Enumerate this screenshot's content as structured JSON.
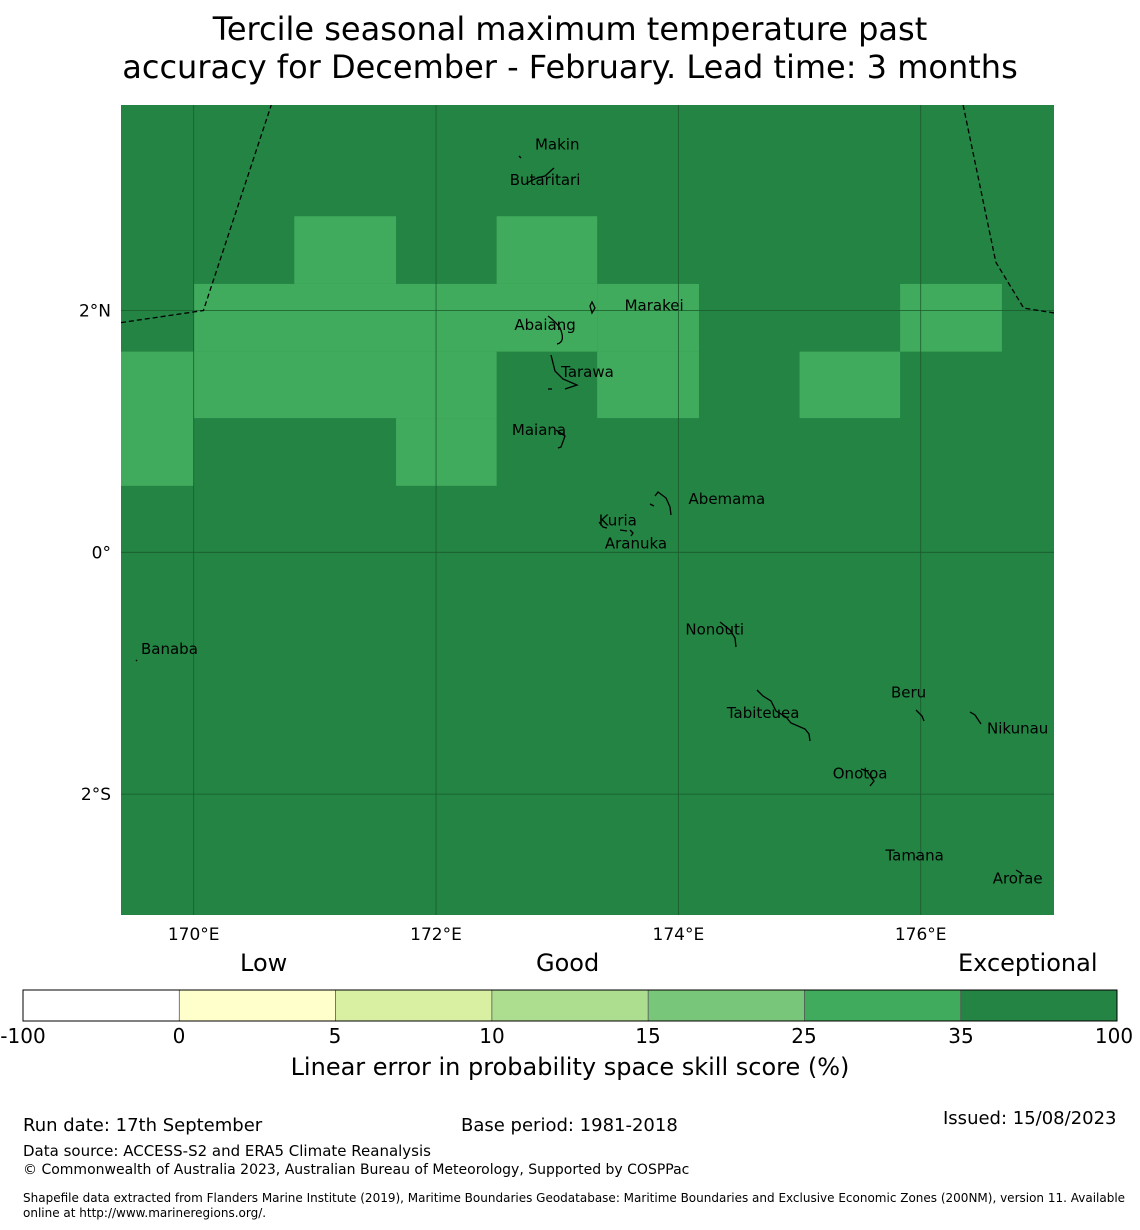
{
  "title": {
    "line1": "Tercile seasonal maximum temperature past",
    "line2": "accuracy for December - February. Lead time: 3 months"
  },
  "map": {
    "lon_range": [
      169.4,
      177.1
    ],
    "lat_range": [
      -3.0,
      3.7
    ],
    "lat_ticks": [
      {
        "value": 2,
        "label": "2°N"
      },
      {
        "value": 0,
        "label": "0°"
      },
      {
        "value": -2,
        "label": "2°S"
      }
    ],
    "lon_ticks": [
      {
        "value": 170,
        "label": "170°E"
      },
      {
        "value": 172,
        "label": "172°E"
      },
      {
        "value": 174,
        "label": "174°E"
      },
      {
        "value": 176,
        "label": "176°E"
      }
    ],
    "base_color": "#238443",
    "good_color": "#41ab5d",
    "cells_25_35": [
      {
        "lon": [
          170.83,
          171.67
        ],
        "lat": [
          2.78,
          2.22
        ]
      },
      {
        "lon": [
          172.5,
          173.33
        ],
        "lat": [
          2.78,
          2.22
        ]
      },
      {
        "lon": [
          170.0,
          173.33
        ],
        "lat": [
          2.22,
          1.66
        ]
      },
      {
        "lon": [
          173.33,
          174.17
        ],
        "lat": [
          2.22,
          1.66
        ]
      },
      {
        "lon": [
          175.83,
          176.67
        ],
        "lat": [
          2.22,
          1.66
        ]
      },
      {
        "lon": [
          169.4,
          170.0
        ],
        "lat": [
          1.66,
          0.55
        ]
      },
      {
        "lon": [
          170.0,
          172.5
        ],
        "lat": [
          1.66,
          1.11
        ]
      },
      {
        "lon": [
          173.33,
          174.17
        ],
        "lat": [
          1.66,
          1.11
        ]
      },
      {
        "lon": [
          175.0,
          175.83
        ],
        "lat": [
          1.66,
          1.11
        ]
      },
      {
        "lon": [
          171.67,
          172.5
        ],
        "lat": [
          1.11,
          0.55
        ]
      }
    ],
    "eez_boundaries": [
      [
        [
          169.4,
          1.9
        ],
        [
          170.08,
          2.0
        ],
        [
          170.64,
          3.7
        ]
      ],
      [
        [
          176.35,
          3.7
        ],
        [
          176.62,
          2.4
        ],
        [
          176.85,
          2.02
        ],
        [
          177.1,
          1.98
        ]
      ]
    ],
    "islands": [
      {
        "name": "Makin",
        "lon": 173.0,
        "lat": 3.33
      },
      {
        "name": "Butaritari",
        "lon": 172.9,
        "lat": 3.04
      },
      {
        "name": "Marakei",
        "lon": 173.8,
        "lat": 2.0
      },
      {
        "name": "Abaiang",
        "lon": 172.9,
        "lat": 1.84
      },
      {
        "name": "Tarawa",
        "lon": 173.25,
        "lat": 1.45
      },
      {
        "name": "Maiana",
        "lon": 172.85,
        "lat": 0.97
      },
      {
        "name": "Abemama",
        "lon": 174.4,
        "lat": 0.4
      },
      {
        "name": "Kuria",
        "lon": 173.5,
        "lat": 0.22
      },
      {
        "name": "Aranuka",
        "lon": 173.65,
        "lat": 0.03
      },
      {
        "name": "Nonouti",
        "lon": 174.3,
        "lat": -0.68
      },
      {
        "name": "Banaba",
        "lon": 169.8,
        "lat": -0.84
      },
      {
        "name": "Tabiteuea",
        "lon": 174.7,
        "lat": -1.37
      },
      {
        "name": "Beru",
        "lon": 175.9,
        "lat": -1.2
      },
      {
        "name": "Nikunau",
        "lon": 176.8,
        "lat": -1.5
      },
      {
        "name": "Onotoa",
        "lon": 175.5,
        "lat": -1.87
      },
      {
        "name": "Tamana",
        "lon": 175.95,
        "lat": -2.55
      },
      {
        "name": "Arorae",
        "lon": 176.8,
        "lat": -2.74
      }
    ]
  },
  "legend": {
    "categories": [
      "Low",
      "Good",
      "Exceptional"
    ],
    "bins": [
      {
        "from": -100,
        "to": 0,
        "color": "#ffffff"
      },
      {
        "from": 0,
        "to": 5,
        "color": "#ffffcc"
      },
      {
        "from": 5,
        "to": 10,
        "color": "#d9f0a3"
      },
      {
        "from": 10,
        "to": 15,
        "color": "#addd8e"
      },
      {
        "from": 15,
        "to": 25,
        "color": "#78c679"
      },
      {
        "from": 25,
        "to": 35,
        "color": "#41ab5d"
      },
      {
        "from": 35,
        "to": 100,
        "color": "#238443"
      }
    ],
    "tick_labels": [
      "-100",
      "0",
      "5",
      "10",
      "15",
      "25",
      "35",
      "100"
    ],
    "title": "Linear error in probability space skill score (%)"
  },
  "footer": {
    "run_date": "Run date: 17th September",
    "base_period": "Base period: 1981-2018",
    "issued": "Issued: 15/08/2023",
    "data_source": "Data source: ACCESS-S2 and ERA5 Climate Reanalysis",
    "copyright": "© Commonwealth of Australia 2023, Australian Bureau of Meteorology, Supported by COSPPac",
    "shapefile_line1": "Shapefile data extracted from Flanders Marine Institute (2019), Maritime Boundaries Geodatabase: Maritime Boundaries and Exclusive Economic Zones (200NM), version 11. Available",
    "shapefile_line2": "online at http://www.marineregions.org/."
  }
}
